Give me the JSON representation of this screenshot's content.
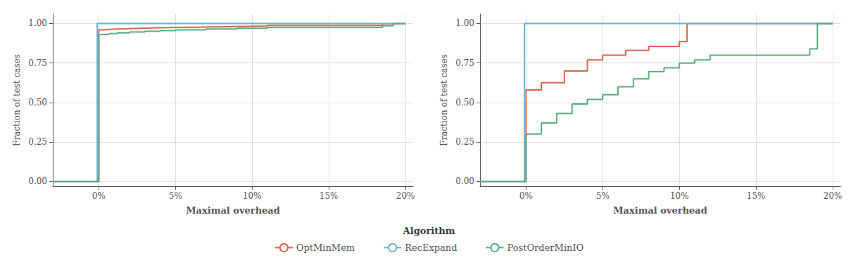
{
  "chart_data": [
    {
      "type": "step",
      "xlabel": "Maximal overhead",
      "ylabel": "Fraction of test cases",
      "legend": "bottom",
      "legend_title": "Algorithm",
      "grid": true,
      "xlim": [
        -0.03,
        0.205
      ],
      "xticks": [
        {
          "value": 0.0,
          "label": "0%"
        },
        {
          "value": 0.05,
          "label": "5%"
        },
        {
          "value": 0.1,
          "label": "10%"
        },
        {
          "value": 0.15,
          "label": "15%"
        },
        {
          "value": 0.2,
          "label": "20%"
        }
      ],
      "ylim": [
        -0.03,
        1.06
      ],
      "yticks": [
        {
          "value": 0.0,
          "label": "0.00"
        },
        {
          "value": 0.25,
          "label": "0.25"
        },
        {
          "value": 0.5,
          "label": "0.50"
        },
        {
          "value": 0.75,
          "label": "0.75"
        },
        {
          "value": 1.0,
          "label": "1.00"
        }
      ],
      "series": [
        {
          "name": "OptMinMem",
          "color": "#d9644a",
          "x": [
            -0.03,
            0.0,
            0.0,
            0.003,
            0.007,
            0.012,
            0.02,
            0.03,
            0.04,
            0.05,
            0.07,
            0.09,
            0.11,
            0.185,
            0.192,
            0.2
          ],
          "values": [
            0.0,
            0.0,
            0.96,
            0.963,
            0.965,
            0.968,
            0.971,
            0.973,
            0.975,
            0.978,
            0.981,
            0.984,
            0.988,
            0.998,
            1.0,
            1.0
          ]
        },
        {
          "name": "RecExpand",
          "color": "#6aaed6",
          "x": [
            -0.03,
            -0.001,
            -0.001,
            0.2
          ],
          "values": [
            0.0,
            0.0,
            1.0,
            1.0
          ]
        },
        {
          "name": "PostOrderMinIO",
          "color": "#5eaa7f",
          "x": [
            -0.03,
            0.0,
            0.0,
            0.003,
            0.007,
            0.012,
            0.02,
            0.03,
            0.04,
            0.05,
            0.07,
            0.09,
            0.11,
            0.185,
            0.192,
            0.2
          ],
          "values": [
            0.0,
            0.0,
            0.93,
            0.933,
            0.937,
            0.941,
            0.946,
            0.951,
            0.956,
            0.96,
            0.965,
            0.97,
            0.975,
            0.985,
            1.0,
            1.0
          ]
        }
      ]
    },
    {
      "type": "step",
      "xlabel": "Maximal overhead",
      "ylabel": "Fraction of test cases",
      "grid": true,
      "xlim": [
        -0.03,
        0.205
      ],
      "xticks": [
        {
          "value": 0.0,
          "label": "0%"
        },
        {
          "value": 0.05,
          "label": "5%"
        },
        {
          "value": 0.1,
          "label": "10%"
        },
        {
          "value": 0.15,
          "label": "15%"
        },
        {
          "value": 0.2,
          "label": "20%"
        }
      ],
      "ylim": [
        -0.03,
        1.06
      ],
      "yticks": [
        {
          "value": 0.0,
          "label": "0.00"
        },
        {
          "value": 0.25,
          "label": "0.25"
        },
        {
          "value": 0.5,
          "label": "0.50"
        },
        {
          "value": 0.75,
          "label": "0.75"
        },
        {
          "value": 1.0,
          "label": "1.00"
        }
      ],
      "series": [
        {
          "name": "OptMinMem",
          "color": "#d9644a",
          "x": [
            -0.03,
            0.0,
            0.0,
            0.01,
            0.025,
            0.04,
            0.05,
            0.065,
            0.08,
            0.1,
            0.105,
            0.2
          ],
          "values": [
            0.0,
            0.0,
            0.58,
            0.625,
            0.7,
            0.77,
            0.8,
            0.83,
            0.855,
            0.885,
            1.0,
            1.0
          ]
        },
        {
          "name": "RecExpand",
          "color": "#6aaed6",
          "x": [
            -0.03,
            -0.001,
            -0.001,
            0.2
          ],
          "values": [
            0.0,
            0.0,
            1.0,
            1.0
          ]
        },
        {
          "name": "PostOrderMinIO",
          "color": "#5eaa7f",
          "x": [
            -0.03,
            0.0,
            0.0,
            0.01,
            0.02,
            0.03,
            0.04,
            0.05,
            0.06,
            0.07,
            0.08,
            0.09,
            0.1,
            0.11,
            0.12,
            0.185,
            0.19,
            0.2
          ],
          "values": [
            0.0,
            0.0,
            0.3,
            0.37,
            0.43,
            0.49,
            0.52,
            0.55,
            0.6,
            0.65,
            0.695,
            0.72,
            0.75,
            0.77,
            0.8,
            0.84,
            1.0,
            1.0
          ]
        }
      ]
    }
  ]
}
